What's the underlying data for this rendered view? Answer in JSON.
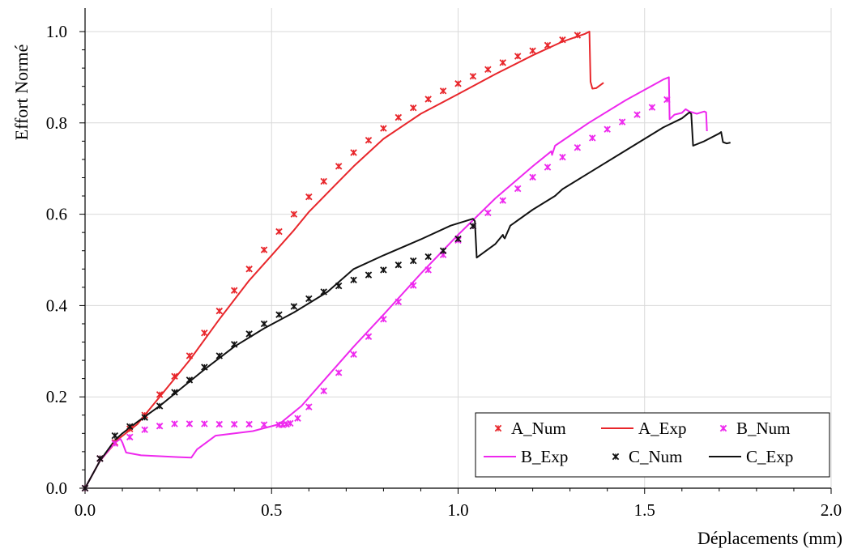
{
  "chart_data": {
    "type": "line",
    "xlabel": "Déplacements (mm)",
    "ylabel": "Effort Normé",
    "xlim": [
      0,
      2.0
    ],
    "ylim": [
      0,
      1.05
    ],
    "xticks": [
      0.0,
      0.5,
      1.0,
      1.5,
      2.0
    ],
    "xtick_labels": [
      "0.0",
      "0.5",
      "1.0",
      "1.5",
      "2.0"
    ],
    "yticks": [
      0.0,
      0.2,
      0.4,
      0.6,
      0.8,
      1.0
    ],
    "ytick_labels": [
      "0.0",
      "0.2",
      "0.4",
      "0.6",
      "0.8",
      "1.0"
    ],
    "grid": true,
    "legend_position": "bottom-right",
    "series": [
      {
        "name": "A_Num",
        "style": "marker",
        "color": "#e8262b",
        "x": [
          0.0,
          0.04,
          0.08,
          0.12,
          0.16,
          0.2,
          0.24,
          0.28,
          0.32,
          0.36,
          0.4,
          0.44,
          0.48,
          0.52,
          0.56,
          0.6,
          0.64,
          0.68,
          0.72,
          0.76,
          0.8,
          0.84,
          0.88,
          0.92,
          0.96,
          1.0,
          1.04,
          1.08,
          1.12,
          1.16,
          1.2,
          1.24,
          1.28,
          1.32
        ],
        "y": [
          0.0,
          0.065,
          0.1,
          0.13,
          0.16,
          0.205,
          0.245,
          0.29,
          0.34,
          0.388,
          0.433,
          0.48,
          0.522,
          0.562,
          0.6,
          0.638,
          0.672,
          0.705,
          0.735,
          0.762,
          0.788,
          0.812,
          0.833,
          0.852,
          0.87,
          0.886,
          0.902,
          0.917,
          0.932,
          0.946,
          0.958,
          0.97,
          0.982,
          0.992
        ]
      },
      {
        "name": "A_Exp",
        "style": "line",
        "color": "#e8262b",
        "x": [
          0.0,
          0.04,
          0.09,
          0.14,
          0.2,
          0.28,
          0.36,
          0.44,
          0.5,
          0.56,
          0.6,
          0.66,
          0.72,
          0.8,
          0.9,
          1.0,
          1.1,
          1.2,
          1.28,
          1.34,
          1.352,
          1.355,
          1.36,
          1.37,
          1.39
        ],
        "y": [
          0.0,
          0.06,
          0.108,
          0.14,
          0.2,
          0.28,
          0.37,
          0.455,
          0.51,
          0.565,
          0.605,
          0.655,
          0.705,
          0.765,
          0.82,
          0.863,
          0.907,
          0.948,
          0.978,
          0.995,
          1.0,
          0.89,
          0.875,
          0.876,
          0.888
        ]
      },
      {
        "name": "B_Num",
        "style": "marker",
        "color": "#ee28ee",
        "x": [
          0.0,
          0.04,
          0.08,
          0.12,
          0.16,
          0.2,
          0.24,
          0.28,
          0.32,
          0.36,
          0.4,
          0.44,
          0.48,
          0.52,
          0.53,
          0.54,
          0.55,
          0.57,
          0.6,
          0.64,
          0.68,
          0.72,
          0.76,
          0.8,
          0.84,
          0.88,
          0.92,
          0.96,
          1.0,
          1.04,
          1.08,
          1.12,
          1.16,
          1.2,
          1.24,
          1.28,
          1.32,
          1.36,
          1.4,
          1.44,
          1.48,
          1.52,
          1.56
        ],
        "y": [
          0.0,
          0.065,
          0.098,
          0.112,
          0.128,
          0.136,
          0.141,
          0.141,
          0.141,
          0.14,
          0.14,
          0.14,
          0.139,
          0.139,
          0.139,
          0.14,
          0.142,
          0.153,
          0.178,
          0.213,
          0.253,
          0.293,
          0.332,
          0.37,
          0.408,
          0.444,
          0.478,
          0.511,
          0.543,
          0.574,
          0.603,
          0.63,
          0.656,
          0.681,
          0.703,
          0.725,
          0.746,
          0.767,
          0.786,
          0.802,
          0.818,
          0.834,
          0.851
        ]
      },
      {
        "name": "B_Exp",
        "style": "line",
        "color": "#ee28ee",
        "x": [
          0.0,
          0.04,
          0.08,
          0.095,
          0.1,
          0.11,
          0.15,
          0.2,
          0.25,
          0.285,
          0.3,
          0.35,
          0.45,
          0.52,
          0.58,
          0.65,
          0.72,
          0.8,
          0.9,
          1.0,
          1.1,
          1.2,
          1.25,
          1.252,
          1.26,
          1.35,
          1.45,
          1.55,
          1.565,
          1.567,
          1.58,
          1.6,
          1.61,
          1.62,
          1.64,
          1.66,
          1.665,
          1.667
        ],
        "y": [
          0.0,
          0.06,
          0.1,
          0.108,
          0.1,
          0.078,
          0.072,
          0.07,
          0.068,
          0.067,
          0.085,
          0.115,
          0.125,
          0.14,
          0.18,
          0.245,
          0.31,
          0.38,
          0.47,
          0.555,
          0.635,
          0.705,
          0.738,
          0.73,
          0.75,
          0.8,
          0.85,
          0.895,
          0.9,
          0.808,
          0.818,
          0.822,
          0.83,
          0.825,
          0.82,
          0.825,
          0.823,
          0.782
        ]
      },
      {
        "name": "C_Num",
        "style": "marker",
        "color": "#111111",
        "x": [
          0.0,
          0.04,
          0.08,
          0.12,
          0.16,
          0.2,
          0.24,
          0.28,
          0.32,
          0.36,
          0.4,
          0.44,
          0.48,
          0.52,
          0.56,
          0.6,
          0.64,
          0.68,
          0.72,
          0.76,
          0.8,
          0.84,
          0.88,
          0.92,
          0.96,
          1.0,
          1.04
        ],
        "y": [
          0.0,
          0.065,
          0.115,
          0.135,
          0.155,
          0.18,
          0.21,
          0.237,
          0.265,
          0.29,
          0.315,
          0.338,
          0.36,
          0.38,
          0.398,
          0.415,
          0.43,
          0.443,
          0.456,
          0.467,
          0.478,
          0.489,
          0.498,
          0.507,
          0.52,
          0.546,
          0.574
        ]
      },
      {
        "name": "C_Exp",
        "style": "line",
        "color": "#111111",
        "x": [
          0.0,
          0.04,
          0.08,
          0.1,
          0.14,
          0.2,
          0.26,
          0.32,
          0.4,
          0.48,
          0.56,
          0.65,
          0.72,
          0.8,
          0.9,
          0.98,
          1.04,
          1.045,
          1.05,
          1.1,
          1.12,
          1.122,
          1.125,
          1.14,
          1.2,
          1.26,
          1.28,
          1.35,
          1.45,
          1.55,
          1.6,
          1.62,
          1.625,
          1.63,
          1.66,
          1.7,
          1.705,
          1.71,
          1.72,
          1.73
        ],
        "y": [
          0.0,
          0.06,
          0.105,
          0.12,
          0.145,
          0.18,
          0.22,
          0.26,
          0.31,
          0.35,
          0.385,
          0.43,
          0.48,
          0.51,
          0.545,
          0.575,
          0.59,
          0.585,
          0.505,
          0.535,
          0.555,
          0.55,
          0.547,
          0.575,
          0.61,
          0.64,
          0.655,
          0.69,
          0.74,
          0.79,
          0.81,
          0.823,
          0.82,
          0.75,
          0.76,
          0.777,
          0.78,
          0.758,
          0.755,
          0.757
        ]
      }
    ]
  }
}
